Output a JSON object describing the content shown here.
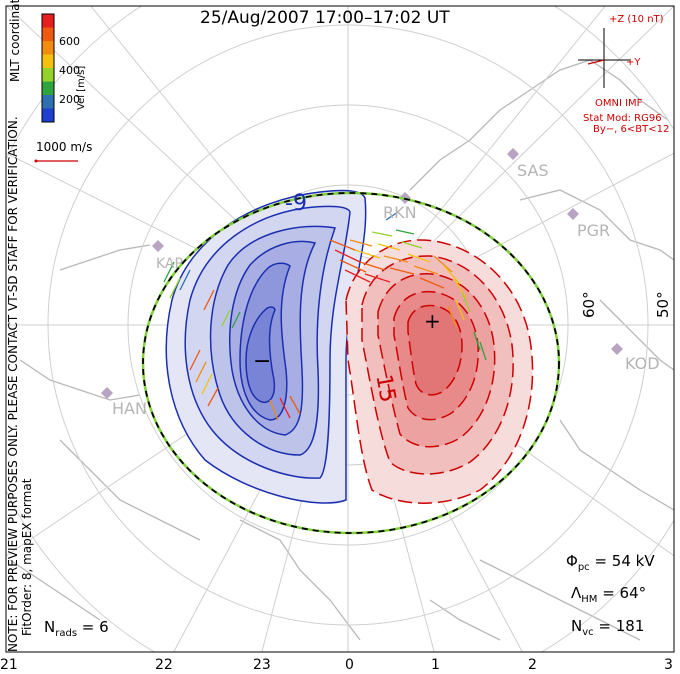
{
  "title": "25/Aug/2007 17:00–17:02 UT",
  "sidebar": {
    "note": "NOTE: FOR PREVIEW PURPOSES ONLY. PLEASE CONTACT VT-SD STAFF FOR VERIFICATION.",
    "fit": "FitOrder: 8, mapEX format",
    "coords": "MLT coordinates"
  },
  "color_scale": {
    "unit": "Vel [m/s]",
    "ticks": [
      "600",
      "400",
      "200"
    ],
    "colors": [
      "#e81f1f",
      "#ee5a12",
      "#f28c0f",
      "#f4c20e",
      "#93d32c",
      "#2fa33e",
      "#2f6fb0",
      "#1e3fd0"
    ]
  },
  "velocity_ref": "1000 m/s",
  "imf": {
    "z_label": "+Z (10 nT)",
    "y_label": "+Y",
    "source": "OMNI IMF",
    "model": "Stat Mod: RG96",
    "condition": "By−, 6<BT<12"
  },
  "stats": {
    "phi_label": "Φ",
    "phi_sub": "pc",
    "phi_value": " = 54 kV",
    "lambda_label": "Λ",
    "lambda_sub": "HM",
    "lambda_value": " = 64°",
    "nvc_label": "N",
    "nvc_sub": "vc",
    "nvc_value": " = 181",
    "nrads_label": "N",
    "nrads_sub": "rads",
    "nrads_value": " = 6"
  },
  "mlt_labels": [
    "21",
    "22",
    "23",
    "0",
    "1",
    "2",
    "3"
  ],
  "potential_labels": {
    "neg": "-9",
    "pos": "15",
    "min": "−",
    "max": "+"
  },
  "latitude_labels": [
    "60°",
    "50°"
  ],
  "stations": [
    "SAS",
    "PGR",
    "KOD",
    "RKN",
    "HAN",
    "KAP"
  ],
  "colors": {
    "neg": "#1a2fb0",
    "pos": "#cc0000",
    "boundary": "#7fd13b"
  }
}
